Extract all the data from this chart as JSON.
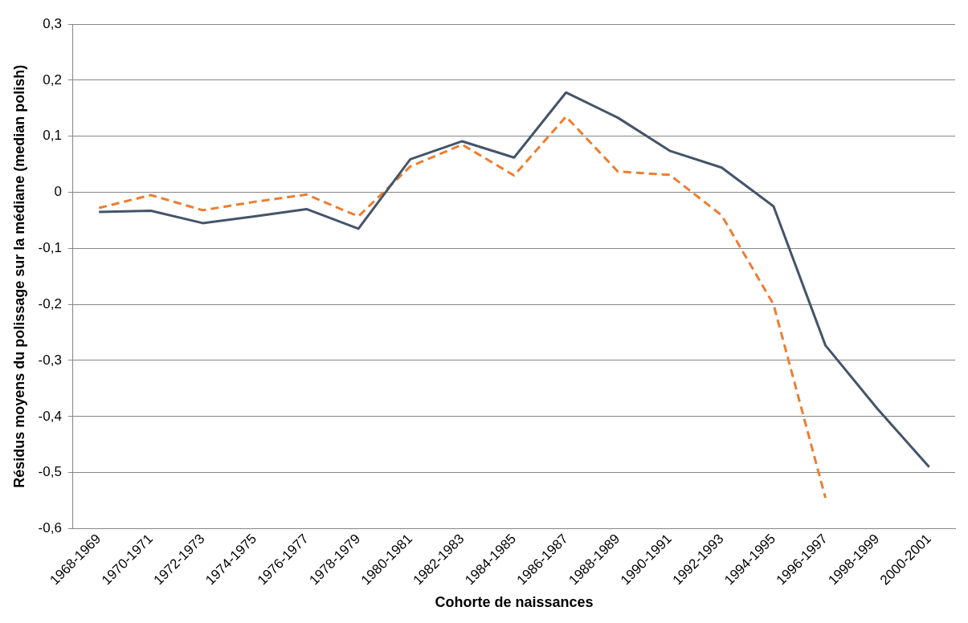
{
  "chart_data": {
    "type": "line",
    "xlabel": "Cohorte de naissances",
    "ylabel": "Résidus moyens du polissage sur la médiane (median polish)",
    "categories": [
      "1968-1969",
      "1970-1971",
      "1972-1973",
      "1974-1975",
      "1976-1977",
      "1978-1979",
      "1980-1981",
      "1982-1983",
      "1984-1985",
      "1986-1987",
      "1988-1989",
      "1990-1991",
      "1992-1993",
      "1994-1995",
      "1996-1997",
      "1998-1999",
      "2000-2001"
    ],
    "series": [
      {
        "color": "#44546a",
        "line_style": "solid",
        "values": [
          -0.035,
          -0.033,
          -0.055,
          -0.043,
          -0.03,
          -0.065,
          0.059,
          0.091,
          0.062,
          0.178,
          0.133,
          0.074,
          0.044,
          -0.025,
          -0.273,
          -0.386,
          -0.49
        ]
      },
      {
        "color": "#ed7d31",
        "line_style": "dashed",
        "values": [
          -0.028,
          -0.005,
          -0.032,
          -0.017,
          -0.004,
          -0.043,
          0.046,
          0.085,
          0.03,
          0.135,
          0.037,
          0.031,
          -0.041,
          -0.2,
          -0.545,
          null,
          null
        ]
      }
    ],
    "ylim": [
      -0.6,
      0.3
    ],
    "yticks": [
      {
        "value": -0.6,
        "label": "-0,6"
      },
      {
        "value": -0.5,
        "label": "-0,5"
      },
      {
        "value": -0.4,
        "label": "-0,4"
      },
      {
        "value": -0.3,
        "label": "-0,3"
      },
      {
        "value": -0.2,
        "label": "-0,2"
      },
      {
        "value": -0.1,
        "label": "-0,1"
      },
      {
        "value": 0,
        "label": "0"
      },
      {
        "value": 0.1,
        "label": "0,1"
      },
      {
        "value": 0.2,
        "label": "0,2"
      },
      {
        "value": 0.3,
        "label": "0,3"
      }
    ],
    "grid": "y",
    "legend": false,
    "marker": "none"
  }
}
